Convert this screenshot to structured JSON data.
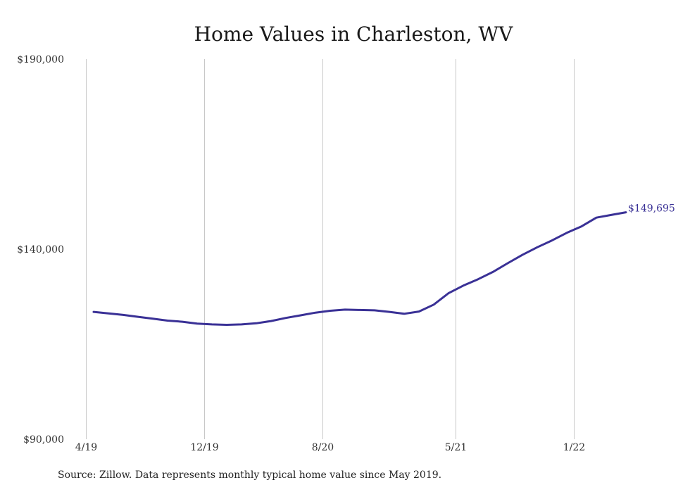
{
  "chart_data": {
    "type": "line",
    "title": "Home Values in Charleston, WV",
    "xlabel": "",
    "ylabel": "",
    "ylim": [
      90000,
      190000
    ],
    "y_ticks": [
      {
        "value": 90000,
        "label": "$90,000"
      },
      {
        "value": 140000,
        "label": "$140,000"
      },
      {
        "value": 190000,
        "label": "$190,000"
      }
    ],
    "x_ticks": [
      {
        "index": -0.5,
        "label": "4/19"
      },
      {
        "index": 7.5,
        "label": "12/19"
      },
      {
        "index": 15.5,
        "label": "8/20"
      },
      {
        "index": 24.5,
        "label": "5/21"
      },
      {
        "index": 32.5,
        "label": "1/22"
      }
    ],
    "grid": "vertical",
    "series": [
      {
        "color": "#3a3196",
        "x": [
          "5/19",
          "6/19",
          "7/19",
          "8/19",
          "9/19",
          "10/19",
          "11/19",
          "12/19",
          "1/20",
          "2/20",
          "3/20",
          "4/20",
          "5/20",
          "6/20",
          "7/20",
          "8/20",
          "9/20",
          "10/20",
          "11/20",
          "12/20",
          "1/21",
          "2/21",
          "3/21",
          "4/21",
          "5/21",
          "6/21",
          "7/21",
          "8/21",
          "9/21",
          "10/21",
          "11/21",
          "12/21",
          "1/22",
          "2/22",
          "3/22",
          "4/22",
          "5/22"
        ],
        "values": [
          123500,
          123100,
          122700,
          122200,
          121700,
          121200,
          120900,
          120400,
          120200,
          120100,
          120200,
          120500,
          121100,
          121900,
          122600,
          123300,
          123800,
          124100,
          124000,
          123900,
          123500,
          123000,
          123600,
          125400,
          128400,
          130400,
          132100,
          134000,
          136300,
          138500,
          140500,
          142300,
          144300,
          146000,
          148300,
          149000,
          149695
        ]
      }
    ],
    "annotations": [
      {
        "label": "$149,695"
      }
    ]
  },
  "footer": {
    "source": "Source: Zillow. Data represents monthly typical home value since May 2019."
  }
}
